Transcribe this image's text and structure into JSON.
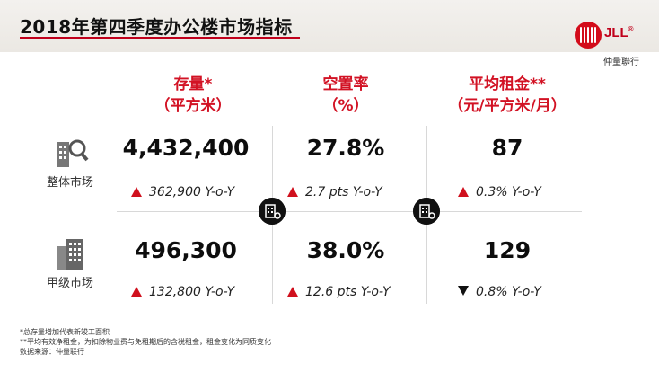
{
  "header": {
    "title": "2018年第四季度办公楼市场指标"
  },
  "logo": {
    "text": "JLL",
    "registered": "®",
    "subtitle": "仲量聯行"
  },
  "columns": [
    {
      "line1": "存量*",
      "line2": "（平方米）"
    },
    {
      "line1": "空置率",
      "line2": "（%）"
    },
    {
      "line1": "平均租金**",
      "line2": "（元/平方米/月）"
    }
  ],
  "rows": [
    {
      "label": "整体市场",
      "icon": "building-search-icon",
      "values": [
        "4,432,400",
        "27.8%",
        "87"
      ],
      "changes": [
        {
          "dir": "up",
          "text": "362,900 Y-o-Y"
        },
        {
          "dir": "up",
          "text": "2.7 pts Y-o-Y"
        },
        {
          "dir": "up",
          "text": "0.3% Y-o-Y"
        }
      ]
    },
    {
      "label": "甲级市场",
      "icon": "office-tower-icon",
      "values": [
        "496,300",
        "38.0%",
        "129"
      ],
      "changes": [
        {
          "dir": "up",
          "text": "132,800 Y-o-Y"
        },
        {
          "dir": "up",
          "text": "12.6 pts Y-o-Y"
        },
        {
          "dir": "down",
          "text": "0.8% Y-o-Y"
        }
      ]
    }
  ],
  "footnotes": [
    "*总存量增加代表新竣工面积",
    "**平均有效净租金，为扣除物业费与免租期后的含税租金，租金变化为同质变化",
    "数据来源：仲量联行"
  ],
  "colors": {
    "accent": "#d21224",
    "up": "#d0101d",
    "down": "#111111"
  }
}
